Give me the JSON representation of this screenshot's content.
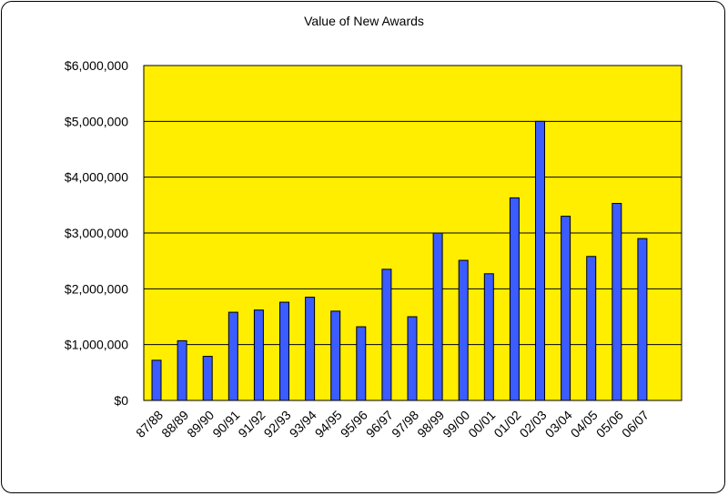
{
  "chart_data": {
    "type": "bar",
    "title": "Value of New Awards",
    "xlabel": "",
    "ylabel": "",
    "categories": [
      "87/88",
      "88/89",
      "89/90",
      "90/91",
      "91/92",
      "92/93",
      "93/94",
      "94/95",
      "95/96",
      "96/97",
      "97/98",
      "98/99",
      "99/00",
      "00/01",
      "01/02",
      "02/03",
      "03/04",
      "04/05",
      "05/06",
      "06/07"
    ],
    "values": [
      720000,
      1070000,
      790000,
      1580000,
      1620000,
      1760000,
      1850000,
      1600000,
      1320000,
      2350000,
      1500000,
      3000000,
      2510000,
      2270000,
      3630000,
      5000000,
      3300000,
      2580000,
      3530000,
      2900000
    ],
    "ylim": [
      0,
      6000000
    ],
    "yticks": [
      "$0",
      "$1,000,000",
      "$2,000,000",
      "$3,000,000",
      "$4,000,000",
      "$5,000,000",
      "$6,000,000"
    ],
    "ytick_values": [
      0,
      1000000,
      2000000,
      3000000,
      4000000,
      5000000,
      6000000
    ],
    "grid": true,
    "plot_bg": "#ffee00",
    "bar_color": "#3b5cff",
    "bar_stroke": "#000000"
  }
}
